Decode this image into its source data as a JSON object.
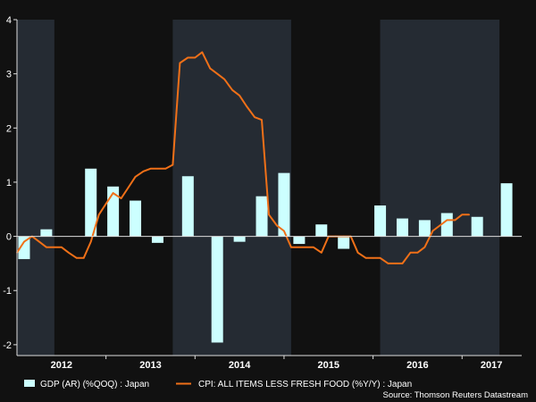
{
  "colors": {
    "background": "#111111",
    "shade": "#252b33",
    "bar": "#ccffff",
    "line": "#f07018",
    "axis": "#dddddd",
    "text": "#ffffff"
  },
  "chart_data": {
    "type": "bar",
    "y_ticks": [
      "4",
      "3",
      "2",
      "1",
      "0",
      "-1",
      "-2"
    ],
    "y_tick_values": [
      4,
      3,
      2,
      1,
      0,
      -1,
      -2
    ],
    "ylim": [
      -2.2,
      4
    ],
    "x_range": [
      2012.0,
      2017.67
    ],
    "x_labels": [
      {
        "text": "2012",
        "x": 2012.5
      },
      {
        "text": "2013",
        "x": 2013.5
      },
      {
        "text": "2014",
        "x": 2014.5
      },
      {
        "text": "2015",
        "x": 2015.5
      },
      {
        "text": "2016",
        "x": 2016.5
      },
      {
        "text": "2017",
        "x": 2017.33
      }
    ],
    "shaded_years": [
      [
        2012.0,
        2012.42
      ],
      [
        2013.75,
        2015.08
      ],
      [
        2016.08,
        2017.42
      ]
    ],
    "series": [
      {
        "name": "GDP (AR) (%QOQ) : Japan",
        "kind": "bar",
        "points": [
          {
            "x": 2012.08,
            "y": -0.42
          },
          {
            "x": 2012.33,
            "y": 0.13
          },
          {
            "x": 2012.83,
            "y": 1.25
          },
          {
            "x": 2013.08,
            "y": 0.92
          },
          {
            "x": 2013.33,
            "y": 0.66
          },
          {
            "x": 2013.58,
            "y": -0.12
          },
          {
            "x": 2013.92,
            "y": 1.11
          },
          {
            "x": 2014.25,
            "y": -1.96
          },
          {
            "x": 2014.5,
            "y": -0.1
          },
          {
            "x": 2014.75,
            "y": 0.74
          },
          {
            "x": 2015.0,
            "y": 1.17
          },
          {
            "x": 2015.17,
            "y": -0.14
          },
          {
            "x": 2015.42,
            "y": 0.22
          },
          {
            "x": 2015.67,
            "y": -0.23
          },
          {
            "x": 2016.08,
            "y": 0.57
          },
          {
            "x": 2016.33,
            "y": 0.33
          },
          {
            "x": 2016.58,
            "y": 0.3
          },
          {
            "x": 2016.83,
            "y": 0.43
          },
          {
            "x": 2017.17,
            "y": 0.36
          },
          {
            "x": 2017.5,
            "y": 0.98
          }
        ]
      },
      {
        "name": "CPI: ALL ITEMS LESS FRESH FOOD (%Y/Y) : Japan",
        "kind": "line",
        "points": [
          {
            "x": 2012.0,
            "y": -0.3
          },
          {
            "x": 2012.08,
            "y": -0.1
          },
          {
            "x": 2012.17,
            "y": 0.0
          },
          {
            "x": 2012.25,
            "y": -0.1
          },
          {
            "x": 2012.33,
            "y": -0.2
          },
          {
            "x": 2012.42,
            "y": -0.2
          },
          {
            "x": 2012.5,
            "y": -0.2
          },
          {
            "x": 2012.58,
            "y": -0.3
          },
          {
            "x": 2012.67,
            "y": -0.4
          },
          {
            "x": 2012.75,
            "y": -0.4
          },
          {
            "x": 2012.83,
            "y": -0.1
          },
          {
            "x": 2012.92,
            "y": 0.4
          },
          {
            "x": 2013.0,
            "y": 0.6
          },
          {
            "x": 2013.08,
            "y": 0.8
          },
          {
            "x": 2013.17,
            "y": 0.7
          },
          {
            "x": 2013.25,
            "y": 0.9
          },
          {
            "x": 2013.33,
            "y": 1.1
          },
          {
            "x": 2013.42,
            "y": 1.2
          },
          {
            "x": 2013.5,
            "y": 1.25
          },
          {
            "x": 2013.58,
            "y": 1.25
          },
          {
            "x": 2013.67,
            "y": 1.25
          },
          {
            "x": 2013.75,
            "y": 1.32
          },
          {
            "x": 2013.83,
            "y": 3.2
          },
          {
            "x": 2013.92,
            "y": 3.3
          },
          {
            "x": 2014.0,
            "y": 3.3
          },
          {
            "x": 2014.08,
            "y": 3.4
          },
          {
            "x": 2014.17,
            "y": 3.1
          },
          {
            "x": 2014.25,
            "y": 3.0
          },
          {
            "x": 2014.33,
            "y": 2.9
          },
          {
            "x": 2014.42,
            "y": 2.7
          },
          {
            "x": 2014.5,
            "y": 2.6
          },
          {
            "x": 2014.58,
            "y": 2.4
          },
          {
            "x": 2014.67,
            "y": 2.2
          },
          {
            "x": 2014.75,
            "y": 2.15
          },
          {
            "x": 2014.83,
            "y": 0.4
          },
          {
            "x": 2014.92,
            "y": 0.2
          },
          {
            "x": 2015.0,
            "y": 0.1
          },
          {
            "x": 2015.08,
            "y": -0.2
          },
          {
            "x": 2015.17,
            "y": -0.2
          },
          {
            "x": 2015.25,
            "y": -0.2
          },
          {
            "x": 2015.33,
            "y": -0.2
          },
          {
            "x": 2015.42,
            "y": -0.3
          },
          {
            "x": 2015.5,
            "y": 0.0
          },
          {
            "x": 2015.58,
            "y": 0.0
          },
          {
            "x": 2015.67,
            "y": 0.0
          },
          {
            "x": 2015.75,
            "y": 0.0
          },
          {
            "x": 2015.83,
            "y": -0.3
          },
          {
            "x": 2015.92,
            "y": -0.4
          },
          {
            "x": 2016.0,
            "y": -0.4
          },
          {
            "x": 2016.08,
            "y": -0.4
          },
          {
            "x": 2016.17,
            "y": -0.5
          },
          {
            "x": 2016.25,
            "y": -0.5
          },
          {
            "x": 2016.33,
            "y": -0.5
          },
          {
            "x": 2016.42,
            "y": -0.3
          },
          {
            "x": 2016.5,
            "y": -0.3
          },
          {
            "x": 2016.58,
            "y": -0.2
          },
          {
            "x": 2016.67,
            "y": 0.1
          },
          {
            "x": 2016.75,
            "y": 0.2
          },
          {
            "x": 2016.83,
            "y": 0.3
          },
          {
            "x": 2016.92,
            "y": 0.3
          },
          {
            "x": 2017.0,
            "y": 0.4
          },
          {
            "x": 2017.08,
            "y": 0.4
          }
        ]
      }
    ],
    "legend": [
      {
        "label": "GDP (AR) (%QOQ) : Japan",
        "kind": "bar"
      },
      {
        "label": "CPI: ALL ITEMS LESS FRESH FOOD (%Y/Y) : Japan",
        "kind": "line"
      }
    ],
    "source": "Source: Thomson Reuters Datastream"
  }
}
